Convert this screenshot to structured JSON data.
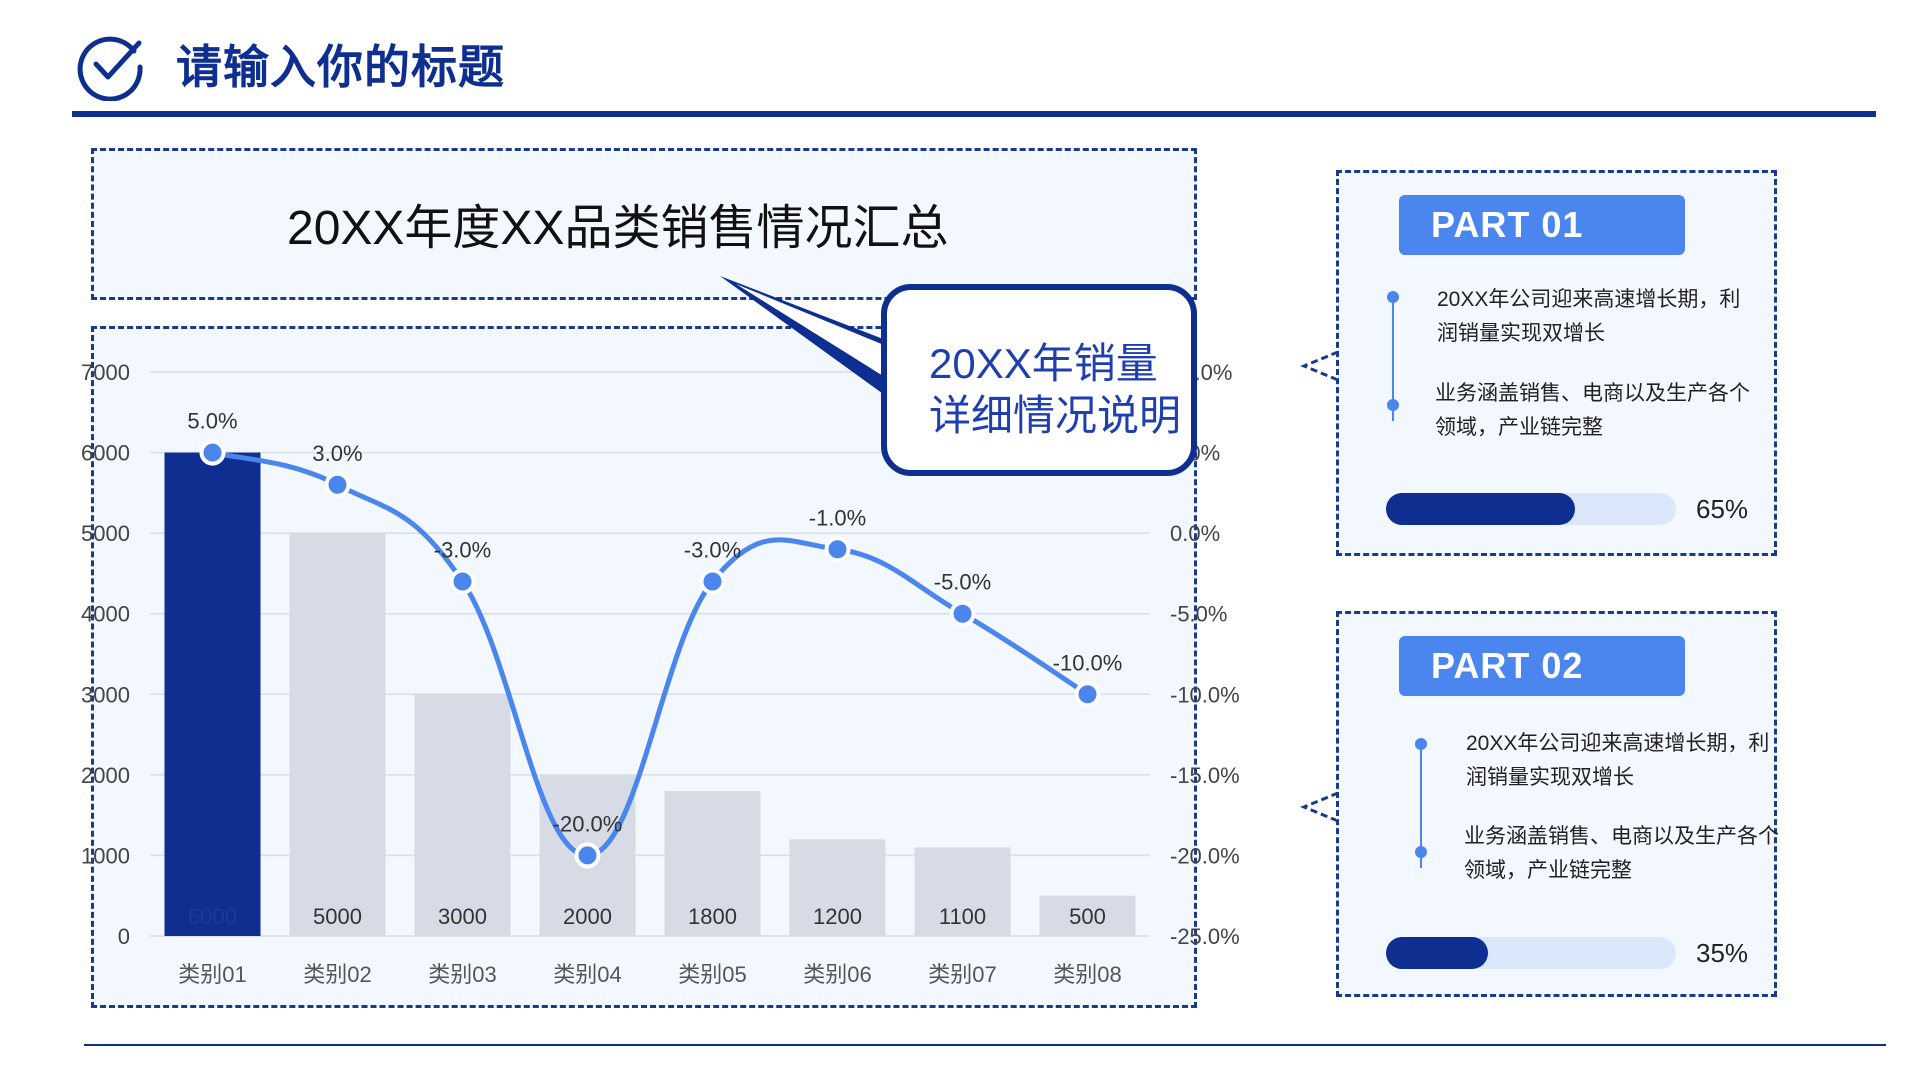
{
  "header": {
    "title": "请输入你的标题",
    "icon": "check-circle-icon",
    "accent_color": "#0e2f8f"
  },
  "summary": {
    "title": "20XX年度XX品类销售情况汇总"
  },
  "callout": {
    "text_line1": "20XX年销量",
    "text_line2": "详细情况说明"
  },
  "chart_data": {
    "type": "bar",
    "categories": [
      "类别01",
      "类别02",
      "类别03",
      "类别04",
      "类别05",
      "类别06",
      "类别07",
      "类别08"
    ],
    "series": [
      {
        "type": "bar",
        "axis": "left",
        "values": [
          6000,
          5000,
          3000,
          2000,
          1800,
          1200,
          1100,
          500
        ],
        "labels": [
          "6000",
          "5000",
          "3000",
          "2000",
          "1800",
          "1200",
          "1100",
          "500"
        ],
        "highlight_index": 0,
        "color": "#0e2f8f",
        "muted_color": "#d6dbe5"
      },
      {
        "type": "line",
        "axis": "right",
        "smooth": true,
        "values": [
          5.0,
          3.0,
          -3.0,
          -20.0,
          -3.0,
          -1.0,
          -5.0,
          -10.0
        ],
        "labels": [
          "5.0%",
          "3.0%",
          "-3.0%",
          "-20.0%",
          "-3.0%",
          "-1.0%",
          "-5.0%",
          "-10.0%"
        ],
        "color": "#4a86ee"
      }
    ],
    "y_left": {
      "ticks": [
        0,
        1000,
        2000,
        3000,
        4000,
        5000,
        6000,
        7000
      ],
      "tick_labels": [
        "0",
        "1000",
        "2000",
        "3000",
        "4000",
        "5000",
        "6000",
        "7000"
      ],
      "ylim": [
        0,
        7000
      ]
    },
    "y_right": {
      "ticks": [
        -25,
        -20,
        -15,
        -10,
        -5,
        0,
        5,
        10
      ],
      "tick_labels": [
        "-25.0%",
        "-20.0%",
        "-15.0%",
        "-10.0%",
        "-5.0%",
        "0.0%",
        "5.0%",
        "10.0%"
      ],
      "ylim": [
        -25,
        10
      ]
    },
    "grid": true
  },
  "parts": [
    {
      "badge": "PART 01",
      "item1": "20XX年公司迎来高速增长期，利润销量实现双增长",
      "item2": "业务涵盖销售、电商以及生产各个领域，产业链完整",
      "progress": 0.65,
      "progress_label": "65%"
    },
    {
      "badge": "PART 02",
      "item1": "20XX年公司迎来高速增长期，利润销量实现双增长",
      "item2": "业务涵盖销售、电商以及生产各个领域，产业链完整",
      "progress": 0.35,
      "progress_label": "35%"
    }
  ]
}
